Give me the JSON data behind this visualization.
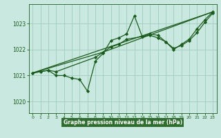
{
  "title": "Graphe pression niveau de la mer (hPa)",
  "bg_color": "#c8e8e0",
  "plot_bg_color": "#c8e8e0",
  "label_bg_color": "#2d6e2d",
  "label_text_color": "#ffffff",
  "line_color": "#1a5c1a",
  "marker_color": "#1a5c1a",
  "xlim": [
    -0.5,
    23.5
  ],
  "ylim": [
    1019.55,
    1023.75
  ],
  "yticks": [
    1020,
    1021,
    1022,
    1023
  ],
  "xticks": [
    0,
    1,
    2,
    3,
    4,
    5,
    6,
    7,
    8,
    9,
    10,
    11,
    12,
    13,
    14,
    15,
    16,
    17,
    18,
    19,
    20,
    21,
    22,
    23
  ],
  "series": [
    {
      "x": [
        0,
        1,
        2,
        3,
        4,
        5,
        6,
        7,
        8,
        9,
        10,
        11,
        12,
        13,
        14,
        15,
        16,
        17,
        18,
        19,
        20,
        21,
        22,
        23
      ],
      "y": [
        1021.1,
        1021.15,
        1021.2,
        1021.0,
        1021.0,
        1020.9,
        1020.85,
        1020.4,
        1021.55,
        1021.85,
        1022.35,
        1022.45,
        1022.6,
        1023.3,
        1022.5,
        1022.6,
        1022.55,
        1022.3,
        1022.0,
        1022.2,
        1022.4,
        1022.8,
        1023.15,
        1023.45
      ],
      "has_markers": true
    },
    {
      "x": [
        0,
        2,
        3,
        8,
        9,
        10,
        11,
        12,
        14,
        15,
        16,
        17,
        18,
        19,
        20,
        21,
        22,
        23
      ],
      "y": [
        1021.1,
        1021.2,
        1021.15,
        1021.7,
        1021.9,
        1022.1,
        1022.2,
        1022.4,
        1022.5,
        1022.55,
        1022.45,
        1022.3,
        1022.05,
        1022.15,
        1022.35,
        1022.65,
        1023.05,
        1023.4
      ],
      "has_markers": true
    },
    {
      "x": [
        0,
        23
      ],
      "y": [
        1021.1,
        1023.45
      ],
      "has_markers": false
    },
    {
      "x": [
        0,
        9,
        23
      ],
      "y": [
        1021.1,
        1021.9,
        1023.45
      ],
      "has_markers": false
    }
  ]
}
